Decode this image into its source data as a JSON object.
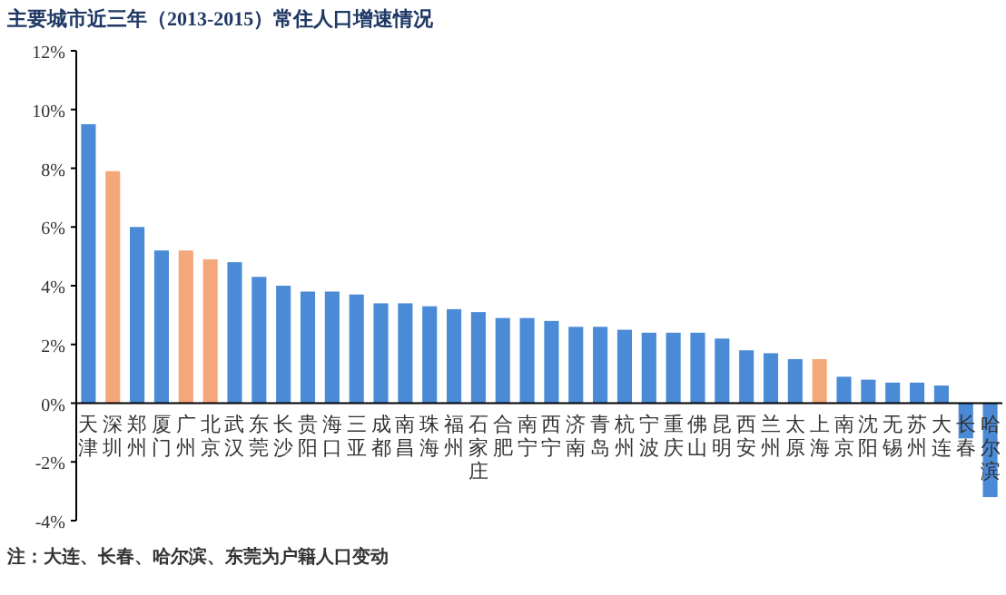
{
  "chart_data": {
    "type": "bar",
    "title": "主要城市近三年（2013-2015）常住人口增速情况",
    "categories": [
      "天津",
      "深圳",
      "郑州",
      "厦门",
      "广州",
      "北京",
      "武汉",
      "东莞",
      "长沙",
      "贵阳",
      "海口",
      "三亚",
      "成都",
      "南昌",
      "珠海",
      "福州",
      "石家庄",
      "合肥",
      "南宁",
      "西宁",
      "济南",
      "青岛",
      "杭州",
      "宁波",
      "重庆",
      "佛山",
      "昆明",
      "西安",
      "兰州",
      "太原",
      "上海",
      "南京",
      "沈阳",
      "无锡",
      "苏州",
      "大连",
      "长春",
      "哈尔滨"
    ],
    "values": [
      9.5,
      7.9,
      6.0,
      5.2,
      5.2,
      4.9,
      4.8,
      4.3,
      4.0,
      3.8,
      3.8,
      3.7,
      3.4,
      3.4,
      3.3,
      3.2,
      3.1,
      2.9,
      2.9,
      2.8,
      2.6,
      2.6,
      2.5,
      2.4,
      2.4,
      2.4,
      2.2,
      1.8,
      1.7,
      1.5,
      1.5,
      0.9,
      0.8,
      0.7,
      0.7,
      0.6,
      -1.2,
      -3.2
    ],
    "colors": [
      "#4a8ad6",
      "#f4a77a",
      "#4a8ad6",
      "#4a8ad6",
      "#f4a77a",
      "#f4a77a",
      "#4a8ad6",
      "#4a8ad6",
      "#4a8ad6",
      "#4a8ad6",
      "#4a8ad6",
      "#4a8ad6",
      "#4a8ad6",
      "#4a8ad6",
      "#4a8ad6",
      "#4a8ad6",
      "#4a8ad6",
      "#4a8ad6",
      "#4a8ad6",
      "#4a8ad6",
      "#4a8ad6",
      "#4a8ad6",
      "#4a8ad6",
      "#4a8ad6",
      "#4a8ad6",
      "#4a8ad6",
      "#4a8ad6",
      "#4a8ad6",
      "#4a8ad6",
      "#4a8ad6",
      "#f4a77a",
      "#4a8ad6",
      "#4a8ad6",
      "#4a8ad6",
      "#4a8ad6",
      "#4a8ad6",
      "#4a8ad6",
      "#4a8ad6"
    ],
    "ylim": [
      -4,
      12
    ],
    "yticks": [
      {
        "value": -4,
        "label": "-4%"
      },
      {
        "value": -2,
        "label": "-2%"
      },
      {
        "value": 0,
        "label": "0%"
      },
      {
        "value": 2,
        "label": "2%"
      },
      {
        "value": 4,
        "label": "4%"
      },
      {
        "value": 6,
        "label": "6%"
      },
      {
        "value": 8,
        "label": "8%"
      },
      {
        "value": 10,
        "label": "10%"
      },
      {
        "value": 12,
        "label": "12%"
      }
    ],
    "grid": false,
    "annotations": [
      "注：大连、长春、哈尔滨、东莞为户籍人口变动"
    ]
  }
}
